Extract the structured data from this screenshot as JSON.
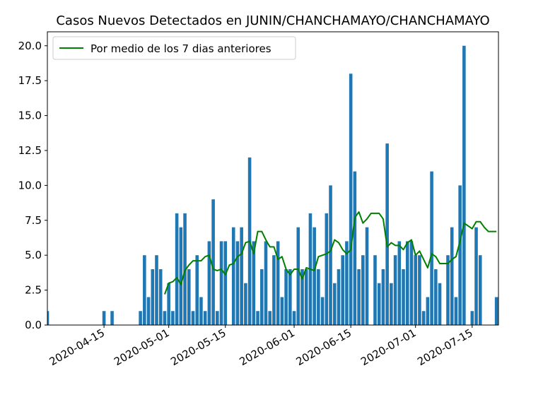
{
  "chart_data": {
    "type": "bar",
    "title": "Casos Nuevos Detectados en JUNIN/CHANCHAMAYO/CHANCHAMAYO",
    "xlabel": "",
    "ylabel": "",
    "x_start": "2020-04-01",
    "ylim": [
      0,
      21
    ],
    "y_ticks": [
      0.0,
      2.5,
      5.0,
      7.5,
      10.0,
      12.5,
      15.0,
      17.5,
      20.0
    ],
    "x_ticks": [
      "2020-04-15",
      "2020-05-01",
      "2020-05-15",
      "2020-06-01",
      "2020-06-15",
      "2020-07-01",
      "2020-07-15"
    ],
    "grid": false,
    "legend_position": "top-left",
    "bar_color": "#1f77b4",
    "line_color": "#008000",
    "series": [
      {
        "type": "bar",
        "dates": [
          "2020-04-01",
          "2020-04-02",
          "2020-04-03",
          "2020-04-04",
          "2020-04-05",
          "2020-04-06",
          "2020-04-07",
          "2020-04-08",
          "2020-04-09",
          "2020-04-10",
          "2020-04-11",
          "2020-04-12",
          "2020-04-13",
          "2020-04-14",
          "2020-04-15",
          "2020-04-16",
          "2020-04-17",
          "2020-04-18",
          "2020-04-19",
          "2020-04-20",
          "2020-04-21",
          "2020-04-22",
          "2020-04-23",
          "2020-04-24",
          "2020-04-25",
          "2020-04-26",
          "2020-04-27",
          "2020-04-28",
          "2020-04-29",
          "2020-04-30",
          "2020-05-01",
          "2020-05-02",
          "2020-05-03",
          "2020-05-04",
          "2020-05-05",
          "2020-05-06",
          "2020-05-07",
          "2020-05-08",
          "2020-05-09",
          "2020-05-10",
          "2020-05-11",
          "2020-05-12",
          "2020-05-13",
          "2020-05-14",
          "2020-05-15",
          "2020-05-16",
          "2020-05-17",
          "2020-05-18",
          "2020-05-19",
          "2020-05-20",
          "2020-05-21",
          "2020-05-22",
          "2020-05-23",
          "2020-05-24",
          "2020-05-25",
          "2020-05-26",
          "2020-05-27",
          "2020-05-28",
          "2020-05-29",
          "2020-05-30",
          "2020-05-31",
          "2020-06-01",
          "2020-06-02",
          "2020-06-03",
          "2020-06-04",
          "2020-06-05",
          "2020-06-06",
          "2020-06-07",
          "2020-06-08",
          "2020-06-09",
          "2020-06-10",
          "2020-06-11",
          "2020-06-12",
          "2020-06-13",
          "2020-06-14",
          "2020-06-15",
          "2020-06-16",
          "2020-06-17",
          "2020-06-18",
          "2020-06-19",
          "2020-06-20",
          "2020-06-21",
          "2020-06-22",
          "2020-06-23",
          "2020-06-24",
          "2020-06-25",
          "2020-06-26",
          "2020-06-27",
          "2020-06-28",
          "2020-06-29",
          "2020-06-30",
          "2020-07-01",
          "2020-07-02",
          "2020-07-03",
          "2020-07-04",
          "2020-07-05",
          "2020-07-06",
          "2020-07-07",
          "2020-07-08",
          "2020-07-09",
          "2020-07-10",
          "2020-07-11",
          "2020-07-12",
          "2020-07-13",
          "2020-07-14",
          "2020-07-15",
          "2020-07-16",
          "2020-07-17",
          "2020-07-18",
          "2020-07-19",
          "2020-07-20",
          "2020-07-21"
        ],
        "values": [
          1,
          0,
          0,
          0,
          0,
          0,
          0,
          0,
          0,
          0,
          0,
          0,
          0,
          0,
          1,
          0,
          1,
          0,
          0,
          0,
          0,
          0,
          0,
          1,
          5,
          2,
          4,
          5,
          4,
          1,
          3,
          1,
          8,
          7,
          8,
          4,
          1,
          5,
          2,
          1,
          6,
          9,
          1,
          6,
          6,
          0,
          7,
          6,
          7,
          3,
          12,
          6,
          1,
          4,
          6,
          1,
          5,
          6,
          2,
          4,
          4,
          1,
          7,
          4,
          4,
          8,
          7,
          4,
          2,
          8,
          10,
          3,
          4,
          5,
          6,
          18,
          11,
          4,
          5,
          7,
          0,
          5,
          3,
          4,
          13,
          3,
          5,
          6,
          4,
          6,
          6,
          5,
          5,
          1,
          2,
          11,
          4,
          3,
          0,
          5,
          7,
          2,
          10,
          20,
          0,
          1,
          7,
          5,
          0,
          0,
          0,
          2
        ]
      },
      {
        "type": "line",
        "name": "Por medio de los 7 dias anteriores",
        "dates": [
          "2020-04-30",
          "2020-05-01",
          "2020-05-02",
          "2020-05-03",
          "2020-05-04",
          "2020-05-05",
          "2020-05-06",
          "2020-05-07",
          "2020-05-08",
          "2020-05-09",
          "2020-05-10",
          "2020-05-11",
          "2020-05-12",
          "2020-05-13",
          "2020-05-14",
          "2020-05-15",
          "2020-05-16",
          "2020-05-17",
          "2020-05-18",
          "2020-05-19",
          "2020-05-20",
          "2020-05-21",
          "2020-05-22",
          "2020-05-23",
          "2020-05-24",
          "2020-05-25",
          "2020-05-26",
          "2020-05-27",
          "2020-05-28",
          "2020-05-29",
          "2020-05-30",
          "2020-05-31",
          "2020-06-01",
          "2020-06-02",
          "2020-06-03",
          "2020-06-04",
          "2020-06-05",
          "2020-06-06",
          "2020-06-07",
          "2020-06-08",
          "2020-06-09",
          "2020-06-10",
          "2020-06-11",
          "2020-06-12",
          "2020-06-13",
          "2020-06-14",
          "2020-06-15",
          "2020-06-16",
          "2020-06-17",
          "2020-06-18",
          "2020-06-19",
          "2020-06-20",
          "2020-06-21",
          "2020-06-22",
          "2020-06-23",
          "2020-06-24",
          "2020-06-25",
          "2020-06-26",
          "2020-06-27",
          "2020-06-28",
          "2020-06-29",
          "2020-06-30",
          "2020-07-01",
          "2020-07-02",
          "2020-07-03",
          "2020-07-04",
          "2020-07-05",
          "2020-07-06",
          "2020-07-07",
          "2020-07-08",
          "2020-07-09",
          "2020-07-10",
          "2020-07-11",
          "2020-07-12",
          "2020-07-13",
          "2020-07-14",
          "2020-07-15",
          "2020-07-16",
          "2020-07-17",
          "2020-07-18",
          "2020-07-19",
          "2020-07-20",
          "2020-07-21"
        ],
        "values": [
          2.2,
          3.0,
          3.1,
          3.4,
          2.9,
          3.9,
          4.3,
          4.6,
          4.6,
          4.6,
          4.9,
          5.0,
          4.0,
          3.9,
          4.0,
          3.6,
          4.3,
          4.4,
          4.9,
          5.1,
          5.9,
          6.0,
          5.1,
          6.7,
          6.7,
          6.1,
          5.6,
          5.6,
          4.7,
          4.9,
          4.0,
          3.6,
          4.0,
          4.0,
          3.3,
          4.1,
          4.0,
          3.9,
          4.9,
          5.0,
          5.1,
          5.3,
          6.1,
          5.9,
          5.4,
          5.1,
          5.4,
          7.7,
          8.1,
          7.3,
          7.6,
          8.0,
          8.0,
          8.0,
          7.6,
          5.6,
          5.9,
          5.7,
          5.7,
          5.4,
          5.9,
          6.1,
          5.0,
          5.3,
          4.7,
          4.1,
          5.1,
          4.9,
          4.4,
          4.4,
          4.4,
          4.7,
          4.9,
          6.0,
          7.3,
          7.1,
          6.9,
          7.4,
          7.4,
          7.0,
          6.7,
          6.7,
          6.7
        ]
      }
    ]
  }
}
